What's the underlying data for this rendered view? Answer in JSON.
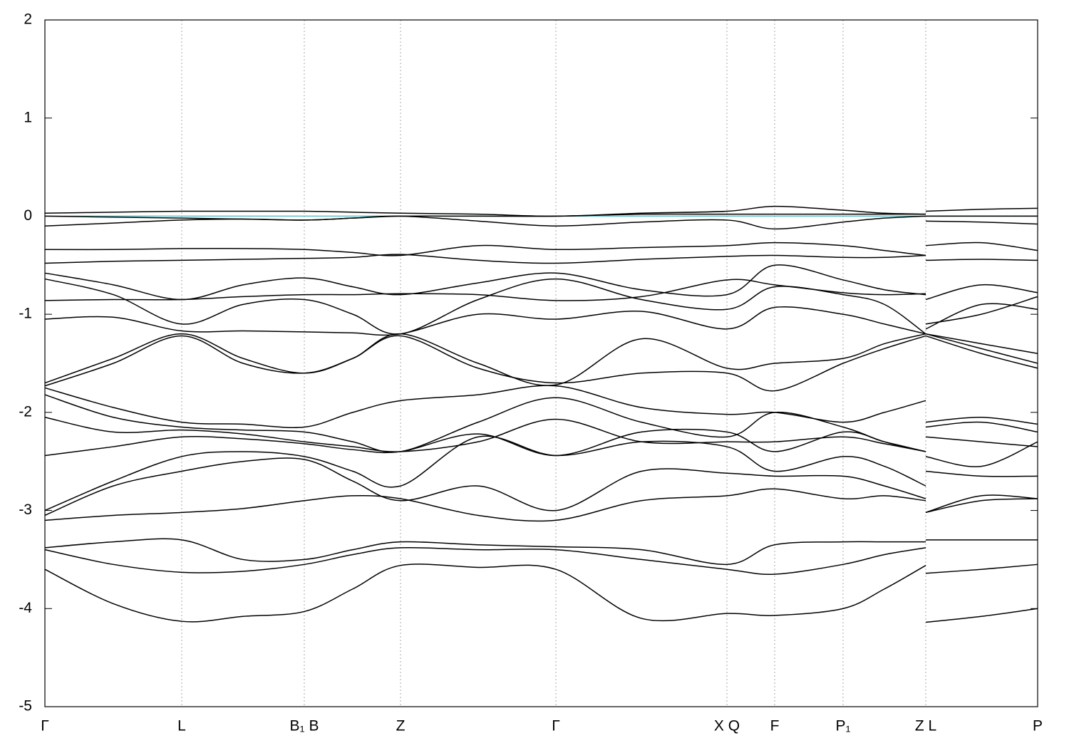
{
  "chart_data": {
    "type": "line",
    "x": [
      0,
      96,
      192,
      278,
      364,
      432,
      499,
      608,
      717,
      837,
      957,
      1024,
      1120,
      1178,
      1236,
      1236,
      1236,
      1314,
      1393
    ],
    "xlim": [
      0,
      1393
    ],
    "xticks": [
      {
        "value": 0,
        "label": "Γ"
      },
      {
        "value": 192,
        "label": "L"
      },
      {
        "value": 364,
        "label": "B₁ B"
      },
      {
        "value": 499,
        "label": "Z"
      },
      {
        "value": 717,
        "label": "Γ"
      },
      {
        "value": 957,
        "label": "X Q"
      },
      {
        "value": 1024,
        "label": "F"
      },
      {
        "value": 1120,
        "label": "P₁"
      },
      {
        "value": 1236,
        "label": "Z L"
      },
      {
        "value": 1393,
        "label": "P"
      }
    ],
    "ylim": [
      -5,
      2
    ],
    "yticks": [
      2,
      1,
      0,
      -1,
      -2,
      -3,
      -4,
      -5
    ],
    "grid": true,
    "color": "#000000",
    "fermi_level": 0,
    "fermi_color": "#5fbfc4",
    "series": [
      {
        "values": [
          0.03,
          0.04,
          0.05,
          0.05,
          0.05,
          0.04,
          0.03,
          0.02,
          0.0,
          0.03,
          0.05,
          0.1,
          0.06,
          0.03,
          0.02,
          null,
          0.05,
          0.07,
          0.08
        ]
      },
      {
        "values": [
          0.0,
          -0.01,
          -0.02,
          -0.03,
          -0.04,
          -0.02,
          0.0,
          0.0,
          0.0,
          0.02,
          0.02,
          0.02,
          0.02,
          0.02,
          0.02,
          null,
          0.0,
          0.0,
          0.0
        ]
      },
      {
        "values": [
          -0.1,
          -0.07,
          -0.04,
          -0.03,
          -0.04,
          -0.02,
          0.0,
          -0.05,
          -0.1,
          -0.06,
          -0.04,
          -0.13,
          -0.06,
          -0.02,
          0.0,
          null,
          -0.05,
          -0.06,
          -0.08
        ]
      },
      {
        "values": [
          -0.34,
          -0.34,
          -0.33,
          -0.33,
          -0.34,
          -0.37,
          -0.4,
          -0.3,
          -0.34,
          -0.32,
          -0.3,
          -0.27,
          -0.3,
          -0.35,
          -0.4,
          null,
          -0.3,
          -0.27,
          -0.35
        ]
      },
      {
        "values": [
          -0.48,
          -0.46,
          -0.45,
          -0.44,
          -0.43,
          -0.42,
          -0.39,
          -0.45,
          -0.48,
          -0.44,
          -0.41,
          -0.4,
          -0.42,
          -0.42,
          -0.4,
          null,
          -0.45,
          -0.44,
          -0.45
        ]
      },
      {
        "values": [
          -0.58,
          -0.7,
          -0.85,
          -0.7,
          -0.63,
          -0.72,
          -0.8,
          -0.68,
          -0.58,
          -0.75,
          -0.8,
          -0.5,
          -0.65,
          -0.75,
          -0.8,
          null,
          -0.85,
          -0.7,
          -0.78
        ]
      },
      {
        "values": [
          -0.64,
          -0.8,
          -1.1,
          -0.9,
          -0.85,
          -1.0,
          -1.2,
          -0.85,
          -0.64,
          -0.85,
          -0.95,
          -0.72,
          -0.8,
          -0.9,
          -1.2,
          null,
          -1.1,
          -1.0,
          -0.82
        ]
      },
      {
        "values": [
          -0.86,
          -0.85,
          -0.85,
          -0.82,
          -0.8,
          -0.8,
          -0.79,
          -0.8,
          -0.86,
          -0.82,
          -0.65,
          -0.7,
          -0.78,
          -0.8,
          -0.79,
          null,
          -1.15,
          -0.9,
          -0.95
        ]
      },
      {
        "values": [
          -1.05,
          -1.03,
          -1.17,
          -1.17,
          -1.18,
          -1.19,
          -1.2,
          -1.0,
          -1.05,
          -0.97,
          -1.15,
          -0.93,
          -1.0,
          -1.1,
          -1.2,
          null,
          -1.2,
          -1.3,
          -1.4
        ]
      },
      {
        "values": [
          -1.7,
          -1.45,
          -1.2,
          -1.45,
          -1.6,
          -1.45,
          -1.2,
          -1.5,
          -1.72,
          -1.25,
          -1.55,
          -1.5,
          -1.45,
          -1.3,
          -1.2,
          null,
          -1.2,
          -1.35,
          -1.5
        ]
      },
      {
        "values": [
          -1.73,
          -1.5,
          -1.22,
          -1.5,
          -1.6,
          -1.45,
          -1.22,
          -1.55,
          -1.7,
          -1.6,
          -1.6,
          -1.78,
          -1.5,
          -1.35,
          -1.22,
          null,
          -1.22,
          -1.4,
          -1.55
        ]
      },
      {
        "values": [
          -1.75,
          -1.95,
          -2.1,
          -2.12,
          -2.15,
          -2.0,
          -1.88,
          -1.82,
          -1.73,
          -1.95,
          -2.02,
          -2.0,
          -2.1,
          -2.0,
          -1.88,
          null,
          -2.1,
          -2.05,
          -2.12
        ]
      },
      {
        "values": [
          -1.82,
          -2.05,
          -2.15,
          -2.18,
          -2.2,
          -2.3,
          -2.4,
          -2.1,
          -1.85,
          -2.1,
          -2.25,
          -2.0,
          -2.15,
          -2.3,
          -2.4,
          null,
          -2.15,
          -2.1,
          -2.2
        ]
      },
      {
        "values": [
          -2.05,
          -2.2,
          -2.18,
          -2.22,
          -2.3,
          -2.35,
          -2.4,
          -2.3,
          -2.07,
          -2.3,
          -2.3,
          -2.3,
          -2.25,
          -2.32,
          -2.4,
          null,
          -2.25,
          -2.3,
          -2.35
        ]
      },
      {
        "values": [
          -2.44,
          -2.35,
          -2.25,
          -2.27,
          -2.32,
          -2.38,
          -2.4,
          -2.22,
          -2.44,
          -2.2,
          -2.2,
          -2.4,
          -2.2,
          -2.3,
          -2.4,
          null,
          -2.45,
          -2.55,
          -2.3
        ]
      },
      {
        "values": [
          -3.0,
          -2.7,
          -2.45,
          -2.4,
          -2.45,
          -2.6,
          -2.75,
          -2.25,
          -2.44,
          -2.3,
          -2.35,
          -2.6,
          -2.45,
          -2.55,
          -2.75,
          null,
          -2.6,
          -2.65,
          -2.65
        ]
      },
      {
        "values": [
          -3.05,
          -2.75,
          -2.6,
          -2.5,
          -2.48,
          -2.7,
          -2.9,
          -2.75,
          -3.0,
          -2.6,
          -2.62,
          -2.65,
          -2.65,
          -2.75,
          -2.88,
          null,
          -3.02,
          -2.85,
          -2.88
        ]
      },
      {
        "values": [
          -3.1,
          -3.05,
          -3.02,
          -2.98,
          -2.9,
          -2.85,
          -2.88,
          -3.05,
          -3.1,
          -2.9,
          -2.85,
          -2.78,
          -2.88,
          -2.85,
          -2.9,
          null,
          -3.02,
          -2.9,
          -2.88
        ]
      },
      {
        "values": [
          -3.38,
          -3.32,
          -3.3,
          -3.5,
          -3.5,
          -3.4,
          -3.32,
          -3.35,
          -3.37,
          -3.4,
          -3.55,
          -3.35,
          -3.32,
          -3.32,
          -3.32,
          null,
          -3.3,
          -3.3,
          -3.3
        ]
      },
      {
        "values": [
          -3.4,
          -3.55,
          -3.63,
          -3.62,
          -3.55,
          -3.45,
          -3.38,
          -3.4,
          -3.4,
          -3.5,
          -3.6,
          -3.65,
          -3.55,
          -3.45,
          -3.38,
          null,
          -3.64,
          -3.6,
          -3.55
        ]
      },
      {
        "values": [
          -3.6,
          -3.95,
          -4.13,
          -4.08,
          -4.03,
          -3.8,
          -3.56,
          -3.58,
          -3.6,
          -4.1,
          -4.05,
          -4.07,
          -4.0,
          -3.8,
          -3.56,
          null,
          -4.14,
          -4.08,
          -4.0
        ]
      }
    ]
  }
}
